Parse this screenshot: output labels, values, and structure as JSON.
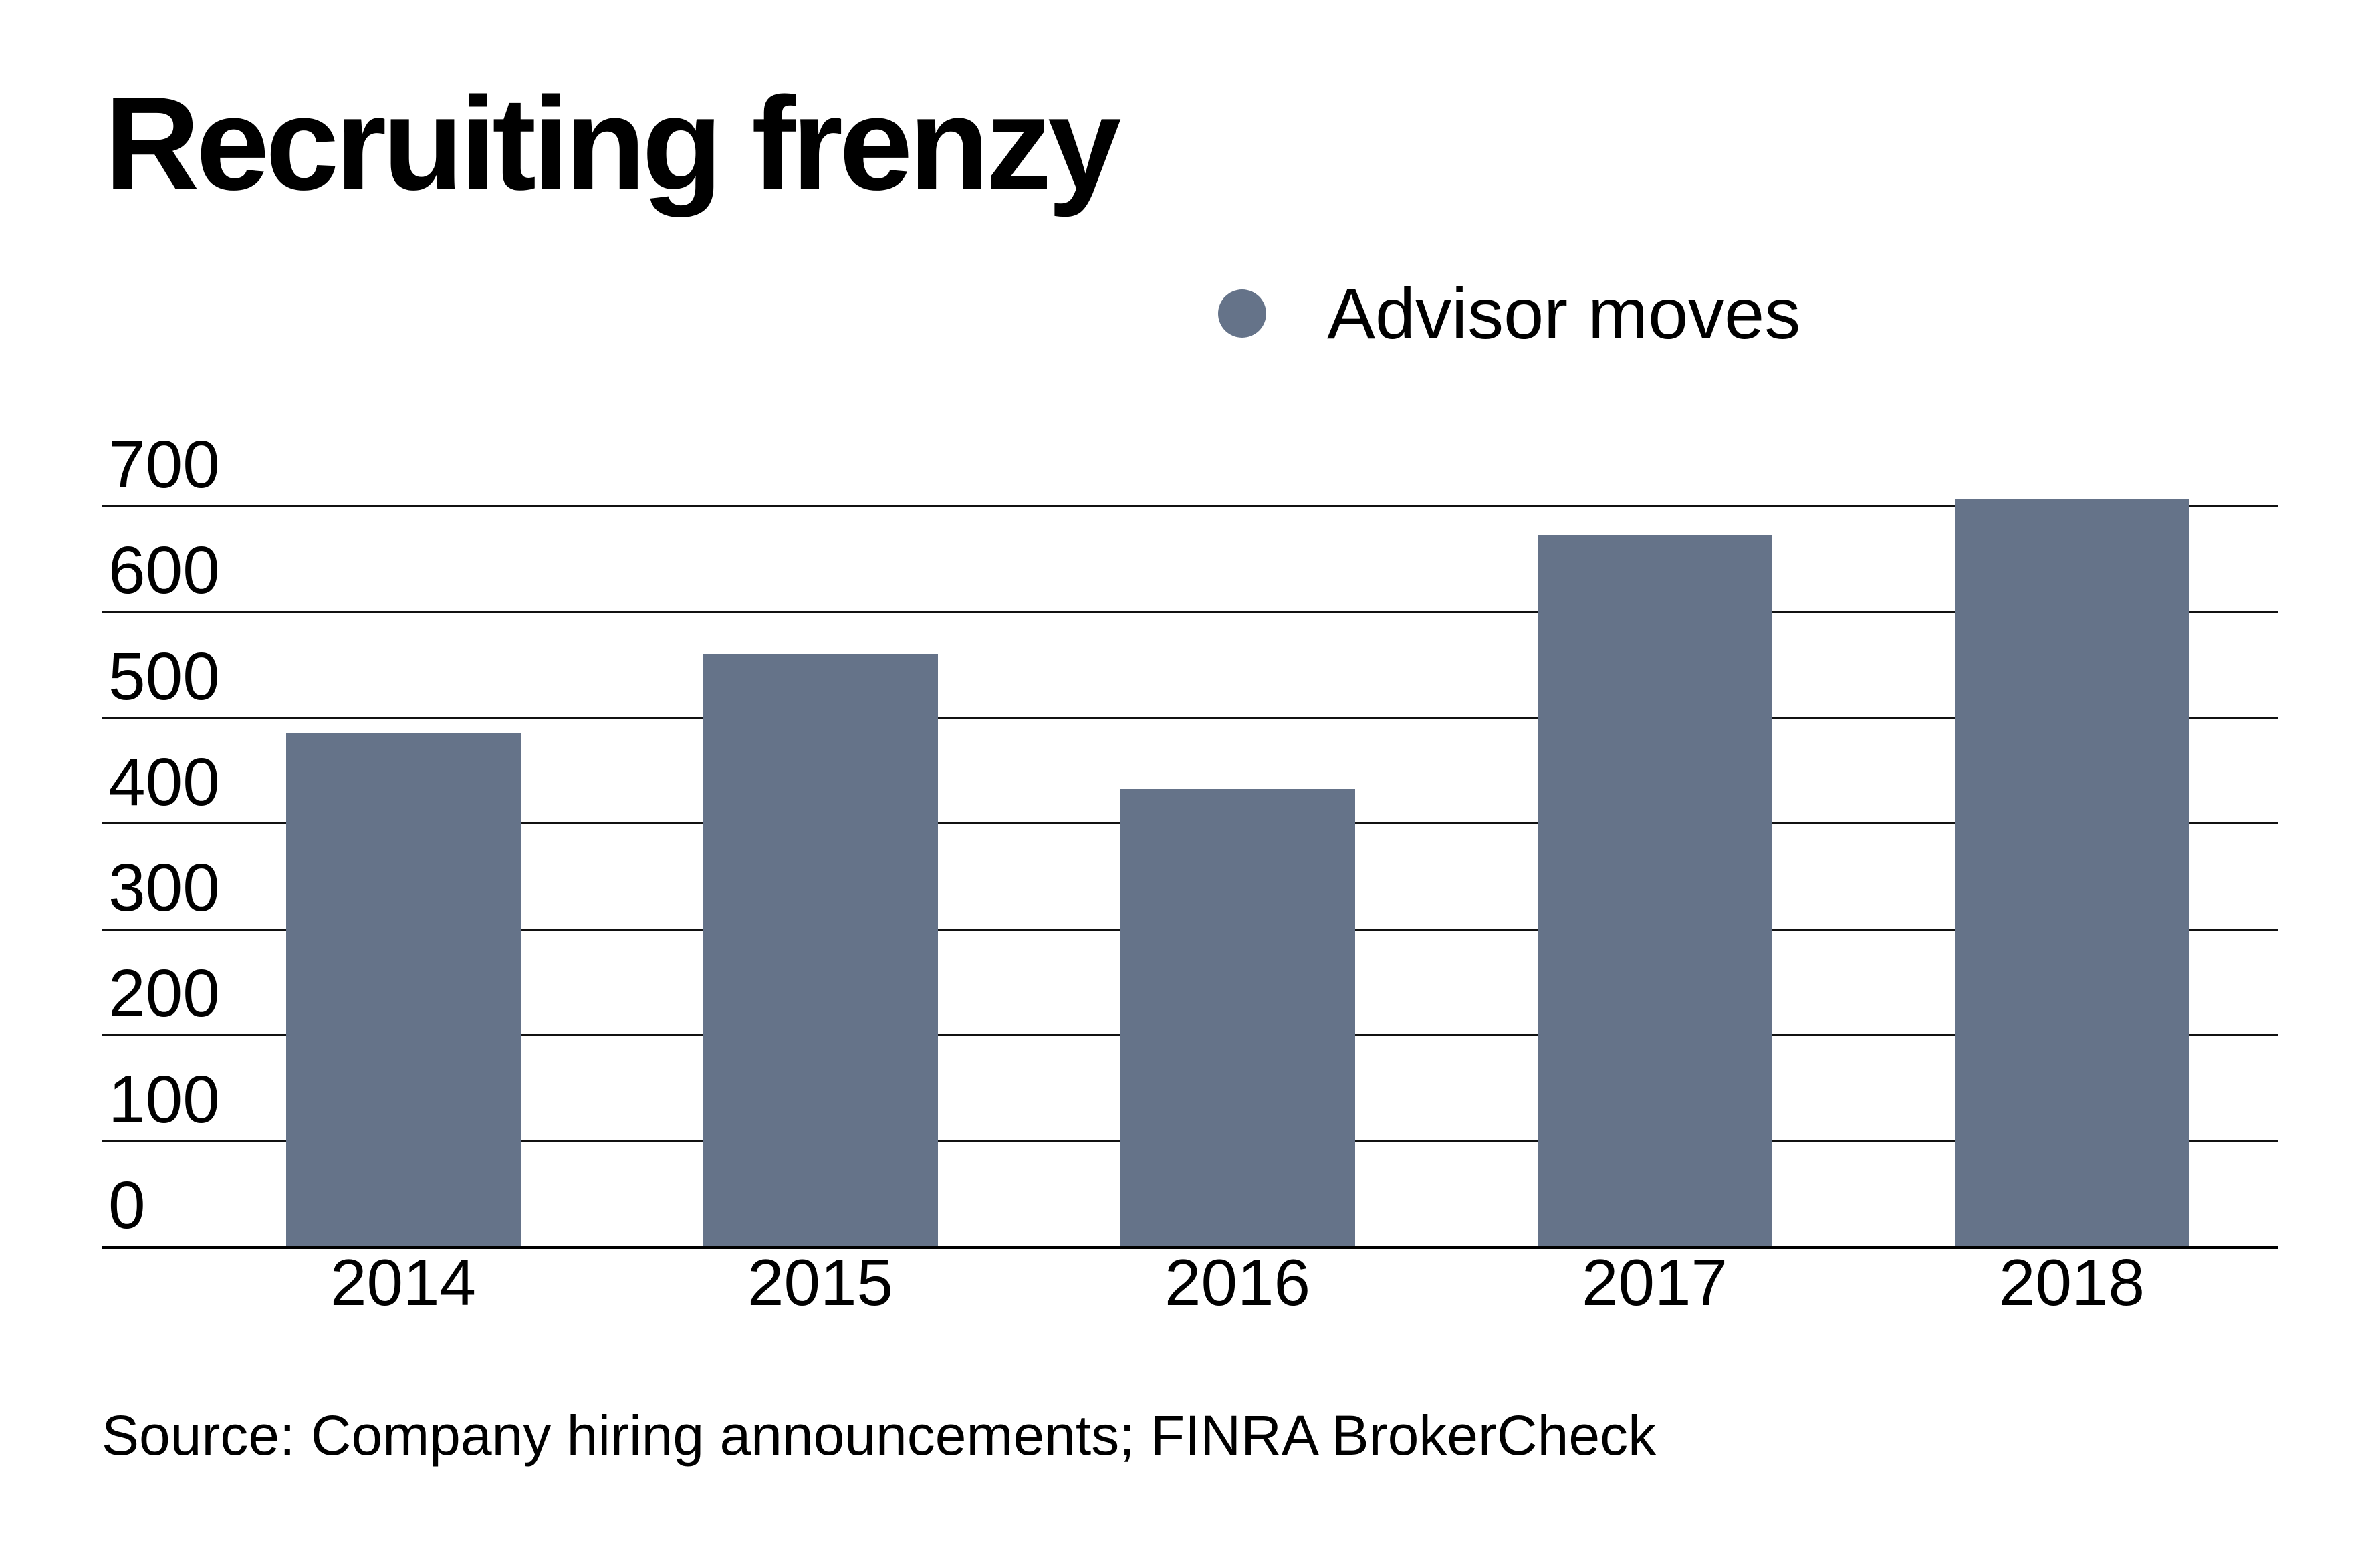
{
  "title": "Recruiting frenzy",
  "legend": {
    "label": "Advisor moves",
    "marker_color": "#657389"
  },
  "source": "Source: Company hiring announcements; FINRA BrokerCheck",
  "chart_data": {
    "type": "bar",
    "title": "Recruiting frenzy",
    "categories": [
      "2014",
      "2015",
      "2016",
      "2017",
      "2018"
    ],
    "series": [
      {
        "name": "Advisor moves",
        "values": [
          485,
          560,
          433,
          673,
          707
        ]
      }
    ],
    "xlabel": "",
    "ylabel": "",
    "ylim": [
      0,
      700
    ],
    "yticks": [
      0,
      100,
      200,
      300,
      400,
      500,
      600,
      700
    ],
    "grid": true,
    "legend_position": "top-right",
    "bar_color": "#657389",
    "gridline_color": "#111111",
    "background_color": "#ffffff"
  }
}
